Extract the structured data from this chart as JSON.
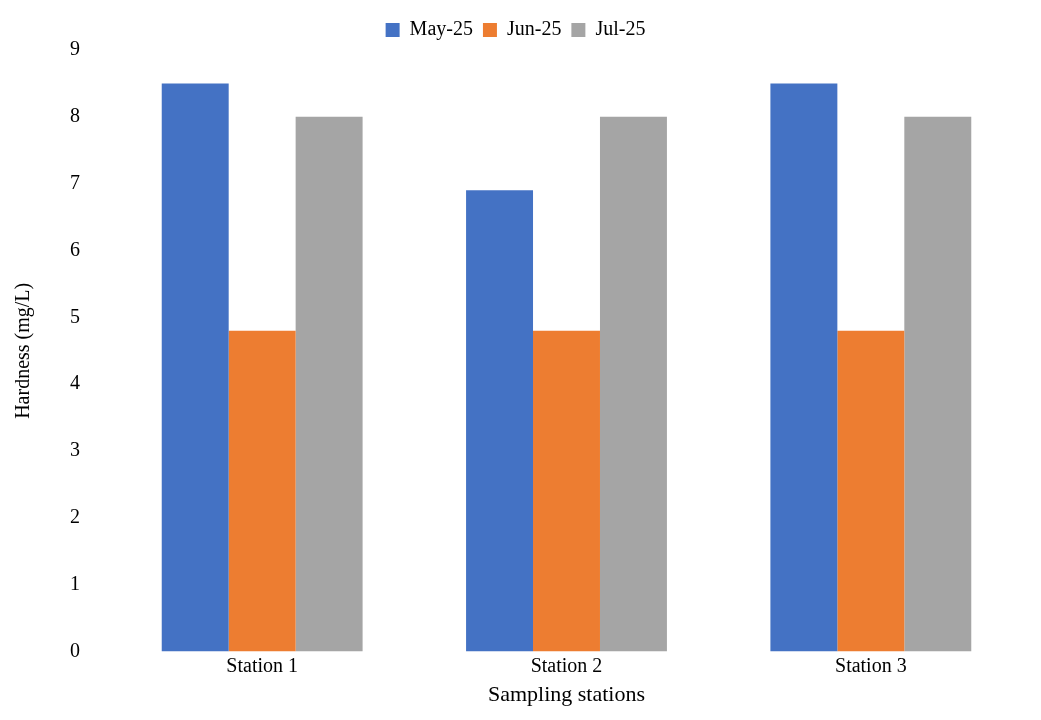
{
  "chart_data": {
    "type": "bar",
    "xlabel": "Sampling stations",
    "ylabel": "Hardness (mg/L)",
    "categories": [
      "Station 1",
      "Station 2",
      "Station 3"
    ],
    "series": [
      {
        "name": "May-25",
        "color": "#4472c4",
        "values": [
          8.5,
          6.9,
          8.5
        ]
      },
      {
        "name": "Jun-25",
        "color": "#ed7d31",
        "values": [
          4.8,
          4.8,
          4.8
        ]
      },
      {
        "name": "Jul-25",
        "color": "#a5a5a5",
        "values": [
          8,
          8,
          8
        ]
      }
    ],
    "ylim": [
      0,
      9
    ],
    "yticks": [
      0,
      1,
      2,
      3,
      4,
      5,
      6,
      7,
      8,
      9
    ],
    "grid": false,
    "legend": "top"
  }
}
